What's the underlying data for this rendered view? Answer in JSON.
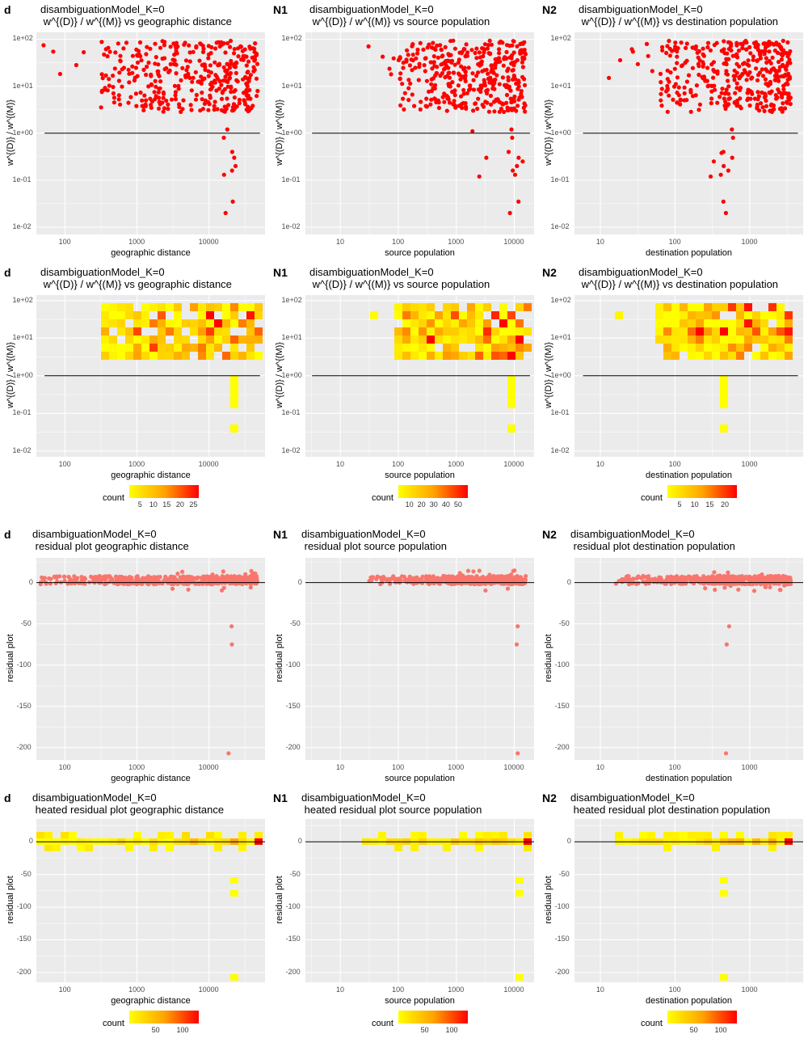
{
  "chart_data": [
    {
      "id": "r1c1",
      "row": 1,
      "col": 1,
      "type": "scatter",
      "panel_tag": "d",
      "title": "disambiguationModel_K=0",
      "subtitle": " w^{(D)} / w^{(M)} vs geographic distance",
      "xlabel": "geographic distance",
      "ylabel": "w^{(D)} / w^{(M)}",
      "xscale": "log",
      "yscale": "log",
      "xlim": [
        40,
        60000
      ],
      "ylim": [
        0.007,
        140
      ],
      "xticks": [
        "100",
        "1000",
        "10000"
      ],
      "yticks": [
        "1e-02",
        "1e-01",
        "1e+00",
        "1e+01",
        "1e+02"
      ],
      "hline": 1,
      "point_color": "#ff0000"
    },
    {
      "id": "r1c2",
      "row": 1,
      "col": 2,
      "type": "scatter",
      "panel_tag": "N1",
      "title": "disambiguationModel_K=0",
      "subtitle": " w^{(D)} / w^{(M)} vs source population",
      "xlabel": "source population",
      "ylabel": "w^{(D)} / w^{(M)}",
      "xscale": "log",
      "yscale": "log",
      "xlim": [
        2.5,
        22000
      ],
      "ylim": [
        0.007,
        140
      ],
      "xticks": [
        "10",
        "100",
        "1000",
        "10000"
      ],
      "yticks": [
        "1e-02",
        "1e-01",
        "1e+00",
        "1e+01",
        "1e+02"
      ],
      "hline": 1,
      "point_color": "#ff0000"
    },
    {
      "id": "r1c3",
      "row": 1,
      "col": 3,
      "type": "scatter",
      "panel_tag": "N2",
      "title": "disambiguationModel_K=0",
      "subtitle": " w^{(D)} / w^{(M)} vs destination population",
      "xlabel": "destination population",
      "ylabel": "w^{(D)} / w^{(M)}",
      "xscale": "log",
      "yscale": "log",
      "xlim": [
        4.5,
        5200
      ],
      "ylim": [
        0.007,
        140
      ],
      "xticks": [
        "10",
        "100",
        "1000"
      ],
      "yticks": [
        "1e-02",
        "1e-01",
        "1e+00",
        "1e+01",
        "1e+02"
      ],
      "hline": 1,
      "point_color": "#ff0000"
    },
    {
      "id": "r2c1",
      "row": 2,
      "col": 1,
      "type": "heatmap",
      "panel_tag": "d",
      "title": "disambiguationModel_K=0",
      "subtitle": " w^{(D)} / w^{(M)} vs geographic distance",
      "xlabel": "geographic distance",
      "ylabel": "w^{(D)} / w^{(M)}",
      "xscale": "log",
      "yscale": "log",
      "xlim": [
        40,
        60000
      ],
      "ylim": [
        0.007,
        140
      ],
      "xticks": [
        "100",
        "1000",
        "10000"
      ],
      "yticks": [
        "1e-02",
        "1e-01",
        "1e+00",
        "1e+01",
        "1e+02"
      ],
      "hline": 1,
      "legend": {
        "title": "count",
        "ticks": [
          "5",
          "10",
          "15",
          "20",
          "25"
        ],
        "range": [
          1,
          27
        ],
        "tick_values": [
          5,
          10,
          15,
          20,
          25
        ],
        "placement": "bottom"
      }
    },
    {
      "id": "r2c2",
      "row": 2,
      "col": 2,
      "type": "heatmap",
      "panel_tag": "N1",
      "title": "disambiguationModel_K=0",
      "subtitle": " w^{(D)} / w^{(M)} vs source population",
      "xlabel": "source population",
      "ylabel": "w^{(D)} / w^{(M)}",
      "xscale": "log",
      "yscale": "log",
      "xlim": [
        2.5,
        22000
      ],
      "ylim": [
        0.007,
        140
      ],
      "xticks": [
        "10",
        "100",
        "1000",
        "10000"
      ],
      "yticks": [
        "1e-02",
        "1e-01",
        "1e+00",
        "1e+01",
        "1e+02"
      ],
      "hline": 1,
      "legend": {
        "title": "count",
        "ticks": [
          "10",
          "20",
          "30",
          "40",
          "50"
        ],
        "range": [
          1,
          58
        ],
        "tick_values": [
          10,
          20,
          30,
          40,
          50
        ],
        "placement": "bottom"
      }
    },
    {
      "id": "r2c3",
      "row": 2,
      "col": 3,
      "type": "heatmap",
      "panel_tag": "N2",
      "title": "disambiguationModel_K=0",
      "subtitle": " w^{(D)} / w^{(M)} vs destination population",
      "xlabel": "destination population",
      "ylabel": "w^{(D)} / w^{(M)}",
      "xscale": "log",
      "yscale": "log",
      "xlim": [
        4.5,
        5200
      ],
      "ylim": [
        0.007,
        140
      ],
      "xticks": [
        "10",
        "100",
        "1000"
      ],
      "yticks": [
        "1e-02",
        "1e-01",
        "1e+00",
        "1e+01",
        "1e+02"
      ],
      "hline": 1,
      "legend": {
        "title": "count",
        "ticks": [
          "5",
          "10",
          "15",
          "20"
        ],
        "range": [
          1,
          24
        ],
        "tick_values": [
          5,
          10,
          15,
          20
        ],
        "placement": "bottom"
      }
    },
    {
      "id": "r3c1",
      "row": 3,
      "col": 1,
      "type": "scatter",
      "panel_tag": "d",
      "title": "disambiguationModel_K=0",
      "subtitle": " residual plot geographic distance",
      "xlabel": "geographic distance",
      "ylabel": "residual plot",
      "xscale": "log",
      "yscale": "linear",
      "xlim": [
        40,
        60000
      ],
      "ylim": [
        -215,
        30
      ],
      "xticks": [
        "100",
        "1000",
        "10000"
      ],
      "yticks": [
        "0",
        "-50",
        "-100",
        "-150",
        "-200"
      ],
      "hline": 0,
      "point_color": "#f8766d"
    },
    {
      "id": "r3c2",
      "row": 3,
      "col": 2,
      "type": "scatter",
      "panel_tag": "N1",
      "title": "disambiguationModel_K=0",
      "subtitle": " residual plot source population",
      "xlabel": "source population",
      "ylabel": "residual plot",
      "xscale": "log",
      "yscale": "linear",
      "xlim": [
        2.5,
        22000
      ],
      "ylim": [
        -215,
        30
      ],
      "xticks": [
        "10",
        "100",
        "1000",
        "10000"
      ],
      "yticks": [
        "0",
        "-50",
        "-100",
        "-150",
        "-200"
      ],
      "hline": 0,
      "point_color": "#f8766d"
    },
    {
      "id": "r3c3",
      "row": 3,
      "col": 3,
      "type": "scatter",
      "panel_tag": "N2",
      "title": "disambiguationModel_K=0",
      "subtitle": " residual plot destination population",
      "xlabel": "destination population",
      "ylabel": "residual plot",
      "xscale": "log",
      "yscale": "linear",
      "xlim": [
        4.5,
        5200
      ],
      "ylim": [
        -215,
        30
      ],
      "xticks": [
        "10",
        "100",
        "1000"
      ],
      "yticks": [
        "0",
        "-50",
        "-100",
        "-150",
        "-200"
      ],
      "hline": 0,
      "point_color": "#f8766d"
    },
    {
      "id": "r4c1",
      "row": 4,
      "col": 1,
      "type": "heatmap",
      "panel_tag": "d",
      "title": "disambiguationModel_K=0",
      "subtitle": " heated residual plot geographic distance",
      "xlabel": "geographic distance",
      "ylabel": "residual plot",
      "xscale": "log",
      "yscale": "linear",
      "xlim": [
        40,
        60000
      ],
      "ylim": [
        -215,
        35
      ],
      "xticks": [
        "100",
        "1000",
        "10000"
      ],
      "yticks": [
        "0",
        "-50",
        "-100",
        "-150",
        "-200"
      ],
      "hline": 0,
      "legend": {
        "title": "count",
        "ticks": [
          "50",
          "100"
        ],
        "range": [
          1,
          130
        ],
        "tick_values": [
          50,
          100
        ],
        "placement": "bottom"
      }
    },
    {
      "id": "r4c2",
      "row": 4,
      "col": 2,
      "type": "heatmap",
      "panel_tag": "N1",
      "title": "disambiguationModel_K=0",
      "subtitle": " heated residual plot source population",
      "xlabel": "source population",
      "ylabel": "residual plot",
      "xscale": "log",
      "yscale": "linear",
      "xlim": [
        2.5,
        22000
      ],
      "ylim": [
        -215,
        35
      ],
      "xticks": [
        "10",
        "100",
        "1000",
        "10000"
      ],
      "yticks": [
        "0",
        "-50",
        "-100",
        "-150",
        "-200"
      ],
      "hline": 0,
      "legend": {
        "title": "count",
        "ticks": [
          "50",
          "100"
        ],
        "range": [
          1,
          130
        ],
        "tick_values": [
          50,
          100
        ],
        "placement": "bottom"
      }
    },
    {
      "id": "r4c3",
      "row": 4,
      "col": 3,
      "type": "heatmap",
      "panel_tag": "N2",
      "title": "disambiguationModel_K=0",
      "subtitle": " heated residual plot destination population",
      "xlabel": "destination population",
      "ylabel": "residual plot",
      "xscale": "log",
      "yscale": "linear",
      "xlim": [
        4.5,
        5200
      ],
      "ylim": [
        -215,
        35
      ],
      "xticks": [
        "10",
        "100",
        "1000"
      ],
      "yticks": [
        "0",
        "-50",
        "-100",
        "-150",
        "-200"
      ],
      "hline": 0,
      "legend": {
        "title": "count",
        "ticks": [
          "50",
          "100"
        ],
        "range": [
          1,
          130
        ],
        "tick_values": [
          50,
          100
        ],
        "placement": "bottom"
      }
    }
  ]
}
